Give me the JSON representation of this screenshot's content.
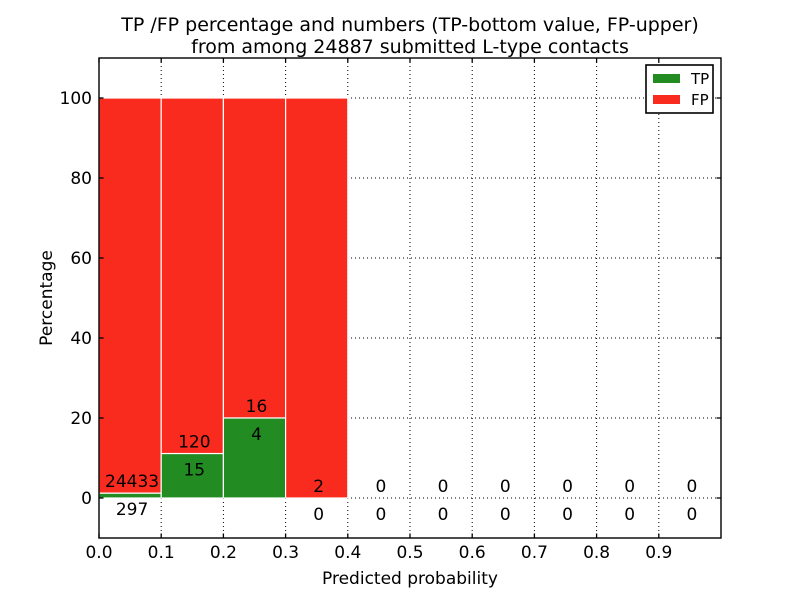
{
  "chart_data": {
    "type": "bar",
    "stacked_percentage": true,
    "title_line1": "TP /FP percentage and numbers (TP-bottom value, FP-upper)",
    "title_line2": "from among 24887 submitted L-type contacts",
    "total_submitted_contacts": 24887,
    "xlabel": "Predicted probability",
    "ylabel": "Percentage",
    "xlim": [
      0.0,
      1.0
    ],
    "ylim": [
      -10,
      110
    ],
    "bin_width": 0.1,
    "x_tick_labels": [
      "0.0",
      "0.1",
      "0.2",
      "0.3",
      "0.4",
      "0.5",
      "0.6",
      "0.7",
      "0.8",
      "0.9"
    ],
    "y_tick_values": [
      0,
      20,
      40,
      60,
      80,
      100
    ],
    "grid_style": "dotted",
    "legend_position": "upper right",
    "legend": {
      "entries": [
        {
          "label": "TP",
          "color": "#228b22"
        },
        {
          "label": "FP",
          "color": "#f92a1e"
        }
      ]
    },
    "colors": {
      "tp": "#228b22",
      "fp": "#f92a1e",
      "background": "#ffffff",
      "text": "#000000"
    },
    "bins": [
      {
        "range": "0.0-0.1",
        "tp": 297,
        "fp": 24433
      },
      {
        "range": "0.1-0.2",
        "tp": 15,
        "fp": 120
      },
      {
        "range": "0.2-0.3",
        "tp": 4,
        "fp": 16
      },
      {
        "range": "0.3-0.4",
        "tp": 0,
        "fp": 2
      },
      {
        "range": "0.4-0.5",
        "tp": 0,
        "fp": 0
      },
      {
        "range": "0.5-0.6",
        "tp": 0,
        "fp": 0
      },
      {
        "range": "0.6-0.7",
        "tp": 0,
        "fp": 0
      },
      {
        "range": "0.7-0.8",
        "tp": 0,
        "fp": 0
      },
      {
        "range": "0.8-0.9",
        "tp": 0,
        "fp": 0
      },
      {
        "range": "0.9-1.0",
        "tp": 0,
        "fp": 0
      }
    ]
  }
}
